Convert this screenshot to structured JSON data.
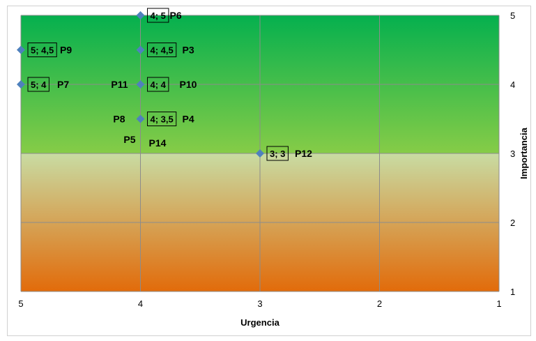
{
  "chart_data": {
    "type": "scatter",
    "xlabel": "Urgencia",
    "ylabel": "Importancia",
    "xlim": [
      5,
      1
    ],
    "ylim": [
      1,
      5
    ],
    "x_reversed": true,
    "x_ticks": [
      "5",
      "4",
      "3",
      "2",
      "1"
    ],
    "y_ticks": [
      "1",
      "2",
      "3",
      "4",
      "5"
    ],
    "grid": true,
    "background_zones": [
      {
        "from": 3,
        "to": 5,
        "colors": [
          "#86cc47",
          "#05b04e"
        ]
      },
      {
        "from": 1,
        "to": 3,
        "colors": [
          "#e26b0a",
          "#c8dca3"
        ]
      }
    ],
    "marker_color": "#4f81bd",
    "points": [
      {
        "x": 4,
        "y": 5,
        "label": "4; 5"
      },
      {
        "x": 5,
        "y": 4.5,
        "label": "5; 4,5"
      },
      {
        "x": 4,
        "y": 4.5,
        "label": "4; 4,5"
      },
      {
        "x": 5,
        "y": 4,
        "label": "5; 4"
      },
      {
        "x": 4,
        "y": 4,
        "label": "4; 4"
      },
      {
        "x": 4,
        "y": 3.5,
        "label": "4; 3,5"
      },
      {
        "x": 3,
        "y": 3,
        "label": "3; 3"
      }
    ],
    "point_names": [
      {
        "text": "P6",
        "x": 4,
        "y": 5,
        "side": "right"
      },
      {
        "text": "P9",
        "x": 5,
        "y": 4.5,
        "side": "right"
      },
      {
        "text": "P3",
        "x": 4,
        "y": 4.5,
        "side": "right"
      },
      {
        "text": "P7",
        "x": 5,
        "y": 4,
        "side": "right"
      },
      {
        "text": "P11",
        "x": 4,
        "y": 4,
        "side": "left"
      },
      {
        "text": "P10",
        "x": 4,
        "y": 4,
        "side": "right"
      },
      {
        "text": "P8",
        "x": 4,
        "y": 3.5,
        "side": "left"
      },
      {
        "text": "P4",
        "x": 4,
        "y": 3.5,
        "side": "right"
      },
      {
        "text": "P5",
        "x": 4,
        "y": 3.2,
        "side": "left"
      },
      {
        "text": "P14",
        "x": 4,
        "y": 3.15,
        "side": "right"
      },
      {
        "text": "P12",
        "x": 3,
        "y": 3,
        "side": "right"
      }
    ]
  }
}
